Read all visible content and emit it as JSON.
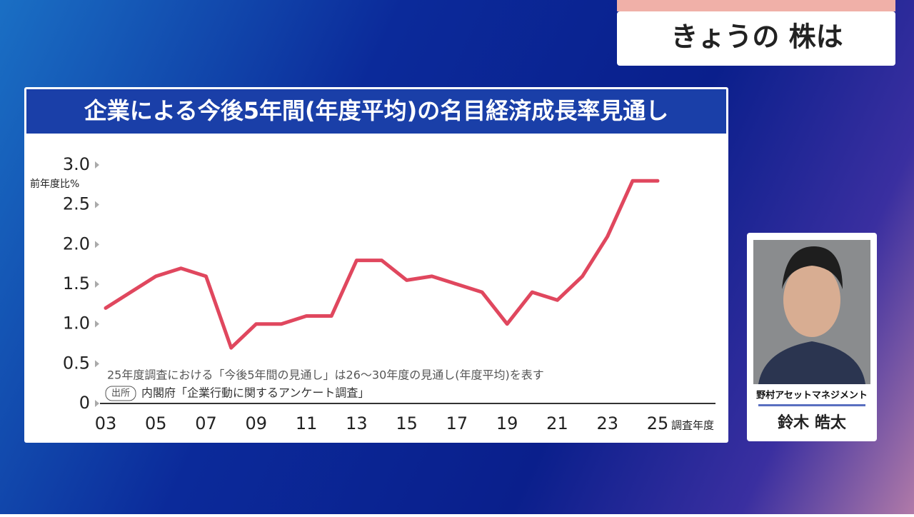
{
  "header": {
    "title": "きょうの 株は"
  },
  "guest": {
    "company": "野村アセットマネジメント",
    "name": "鈴木 皓太"
  },
  "chart_data": {
    "type": "line",
    "title": "企業による今後5年間(年度平均)の名目経済成長率見通し",
    "y_label": "前年度比%",
    "x_label": "調査年度",
    "note": "25年度調査における「今後5年間の見通し」は26～30年度の見通し(年度平均)を表す",
    "source_badge": "出所",
    "source": "内閣府「企業行動に関するアンケート調査」",
    "categories": [
      "03",
      null,
      "05",
      null,
      "07",
      null,
      "09",
      null,
      "11",
      null,
      "13",
      null,
      "15",
      null,
      "17",
      null,
      "19",
      null,
      "21",
      null,
      "23",
      null,
      "25"
    ],
    "values": [
      1.2,
      1.4,
      1.6,
      1.7,
      1.6,
      0.7,
      1.0,
      1.0,
      1.1,
      1.1,
      1.8,
      1.8,
      1.55,
      1.6,
      1.5,
      1.4,
      1.0,
      1.4,
      1.3,
      1.6,
      2.1,
      2.8,
      2.8
    ],
    "color": "#e0475e",
    "ylim": [
      0,
      3
    ],
    "yticks": [
      0,
      0.5,
      {
        "value": 1,
        "label": "1.0"
      },
      1.5,
      {
        "value": 2,
        "label": "2.0"
      },
      2.5,
      {
        "value": 3,
        "label": "3.0"
      }
    ]
  }
}
